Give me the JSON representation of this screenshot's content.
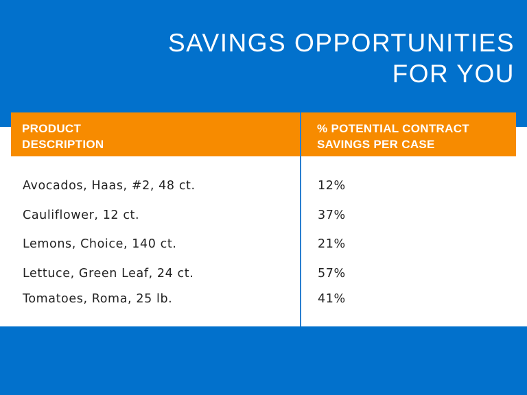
{
  "title_line1": "SAVINGS OPPORTUNITIES",
  "title_line2": "FOR YOU",
  "columns": [
    {
      "line1": "PRODUCT",
      "line2": "DESCRIPTION"
    },
    {
      "line1": "% POTENTIAL CONTRACT",
      "line2": "SAVINGS PER CASE"
    }
  ],
  "rows": [
    {
      "product": "Avocados, Haas, #2, 48 ct.",
      "savings": "12%"
    },
    {
      "product": "Cauliflower, 12 ct.",
      "savings": "37%"
    },
    {
      "product": "Lemons, Choice, 140 ct.",
      "savings": "21%"
    },
    {
      "product": "Lettuce, Green Leaf, 24 ct.",
      "savings": "57%"
    },
    {
      "product": "Tomatoes, Roma, 25 lb.",
      "savings": "41%"
    }
  ],
  "colors": {
    "blue": "#0271cc",
    "orange": "#f78b00"
  }
}
